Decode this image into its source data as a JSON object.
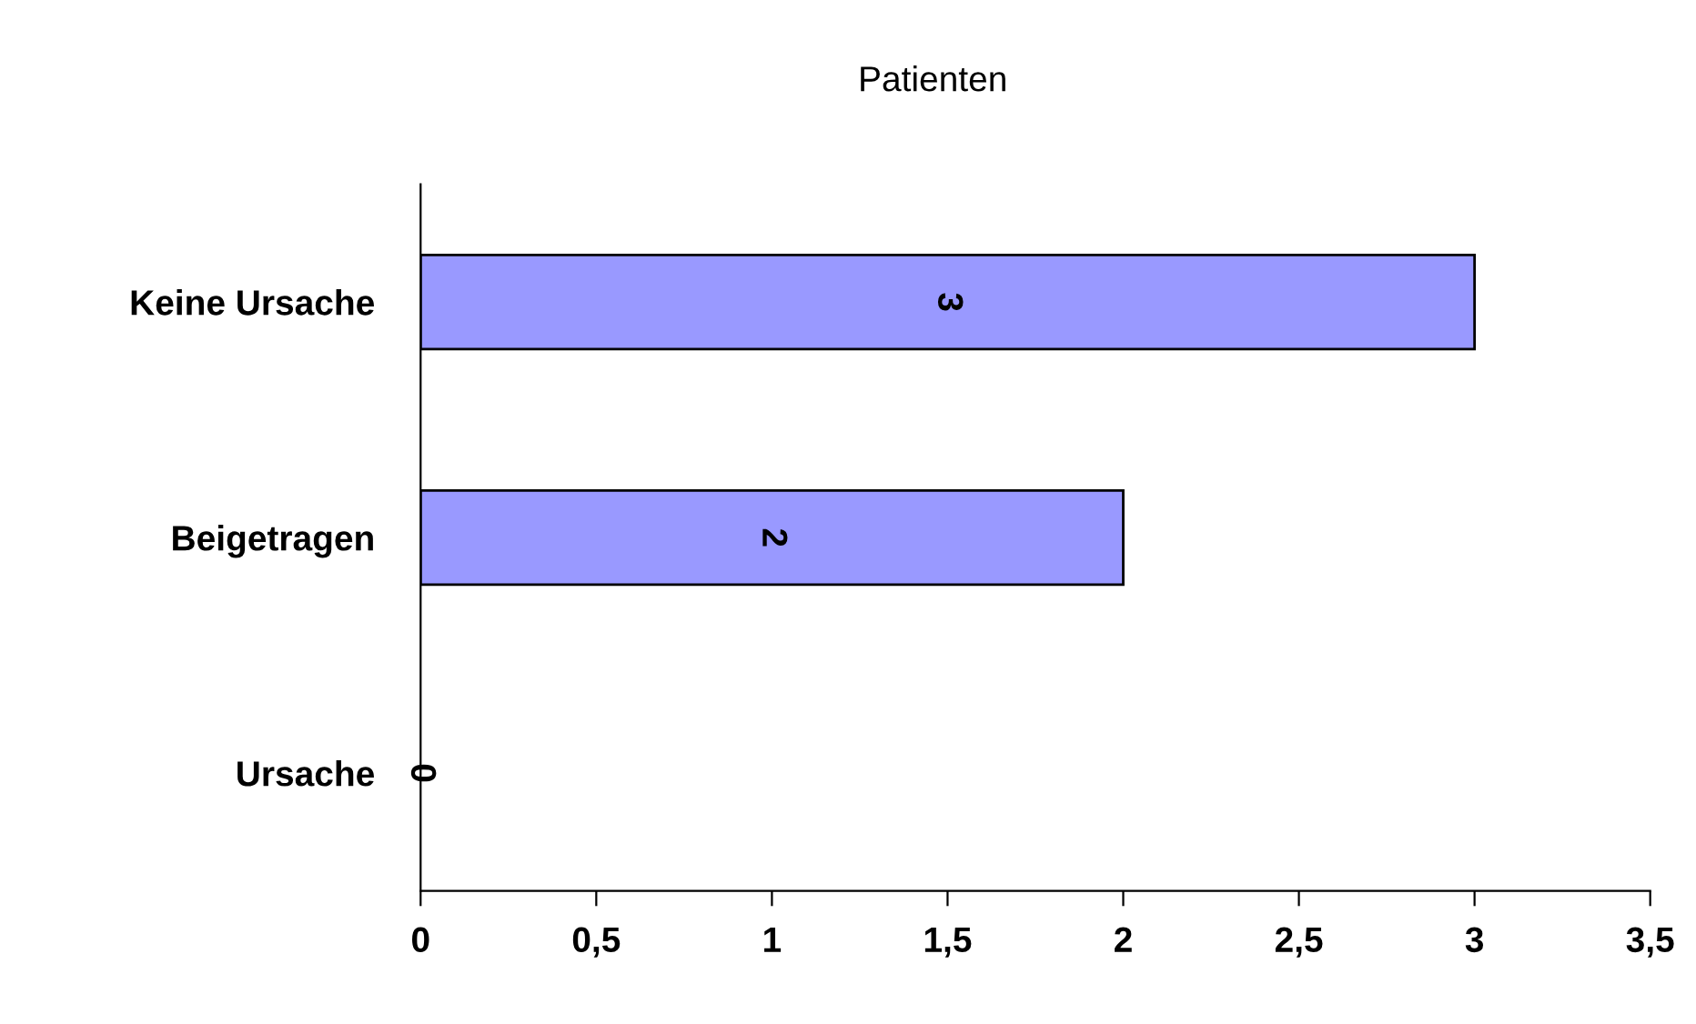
{
  "chart_data": {
    "type": "bar",
    "orientation": "horizontal",
    "title": "Patienten",
    "categories": [
      "Keine Ursache",
      "Beigetragen",
      "Ursache"
    ],
    "values": [
      3,
      2,
      0
    ],
    "color": "#9999ff",
    "value_labels": [
      "3",
      "2",
      "0"
    ],
    "xlim": [
      0,
      3.5
    ],
    "xticks": [
      0,
      {
        "value": 0.5,
        "label": "0,5"
      },
      1,
      {
        "value": 1.5,
        "label": "1,5"
      },
      2,
      {
        "value": 2.5,
        "label": "2,5"
      },
      3,
      {
        "value": 3.5,
        "label": "3,5"
      }
    ],
    "grid": false,
    "legend": false
  }
}
